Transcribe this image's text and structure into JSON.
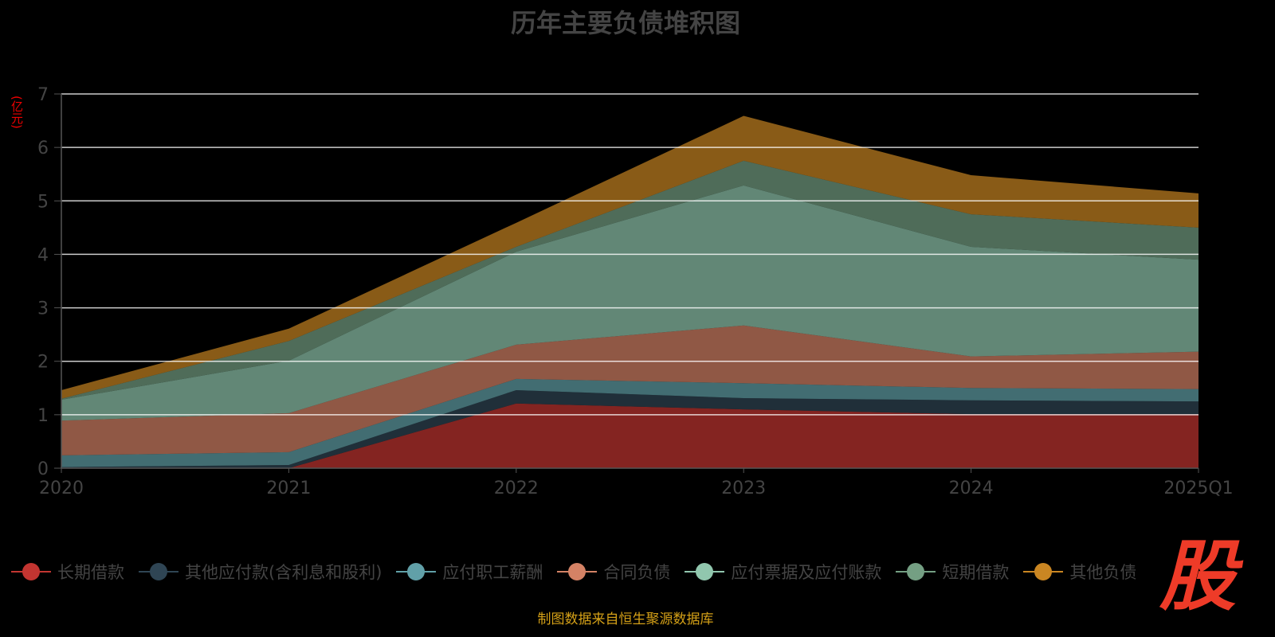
{
  "chart_data": {
    "type": "area",
    "stacked": true,
    "title": "历年主要负债堆积图",
    "ylabel": "(亿元)",
    "xlabel": "",
    "ylim": [
      0,
      7
    ],
    "yticks": [
      "0",
      "1",
      "2",
      "3",
      "4",
      "5",
      "6",
      "7"
    ],
    "categories": [
      "2020",
      "2021",
      "2022",
      "2023",
      "2024",
      "2025Q1"
    ],
    "grid": true,
    "legend_position": "bottom",
    "series": [
      {
        "name": "长期借款",
        "color": "#c23531",
        "values": [
          0,
          0,
          1.21,
          1.1,
          1.01,
          1.01
        ]
      },
      {
        "name": "其他应付款(含利息和股利)",
        "color": "#2f4554",
        "values": [
          0.02,
          0.06,
          0.25,
          0.21,
          0.26,
          0.24
        ]
      },
      {
        "name": "应付职工薪酬",
        "color": "#61a0a8",
        "values": [
          0.22,
          0.24,
          0.21,
          0.28,
          0.23,
          0.23
        ]
      },
      {
        "name": "合同负债",
        "color": "#d48265",
        "values": [
          0.65,
          0.73,
          0.64,
          1.08,
          0.59,
          0.7
        ]
      },
      {
        "name": "应付票据及应付账款",
        "color": "#91c7ae",
        "values": [
          0.39,
          0.98,
          1.74,
          2.62,
          2.05,
          1.72
        ]
      },
      {
        "name": "短期借款",
        "color": "#749f83",
        "values": [
          0.02,
          0.37,
          0.09,
          0.46,
          0.61,
          0.6
        ]
      },
      {
        "name": "其他负债",
        "color": "#ca8622",
        "values": [
          0.16,
          0.23,
          0.45,
          0.84,
          0.73,
          0.64
        ]
      }
    ]
  },
  "footer": "制图数据来自恒生聚源数据库",
  "logo_text": "股"
}
